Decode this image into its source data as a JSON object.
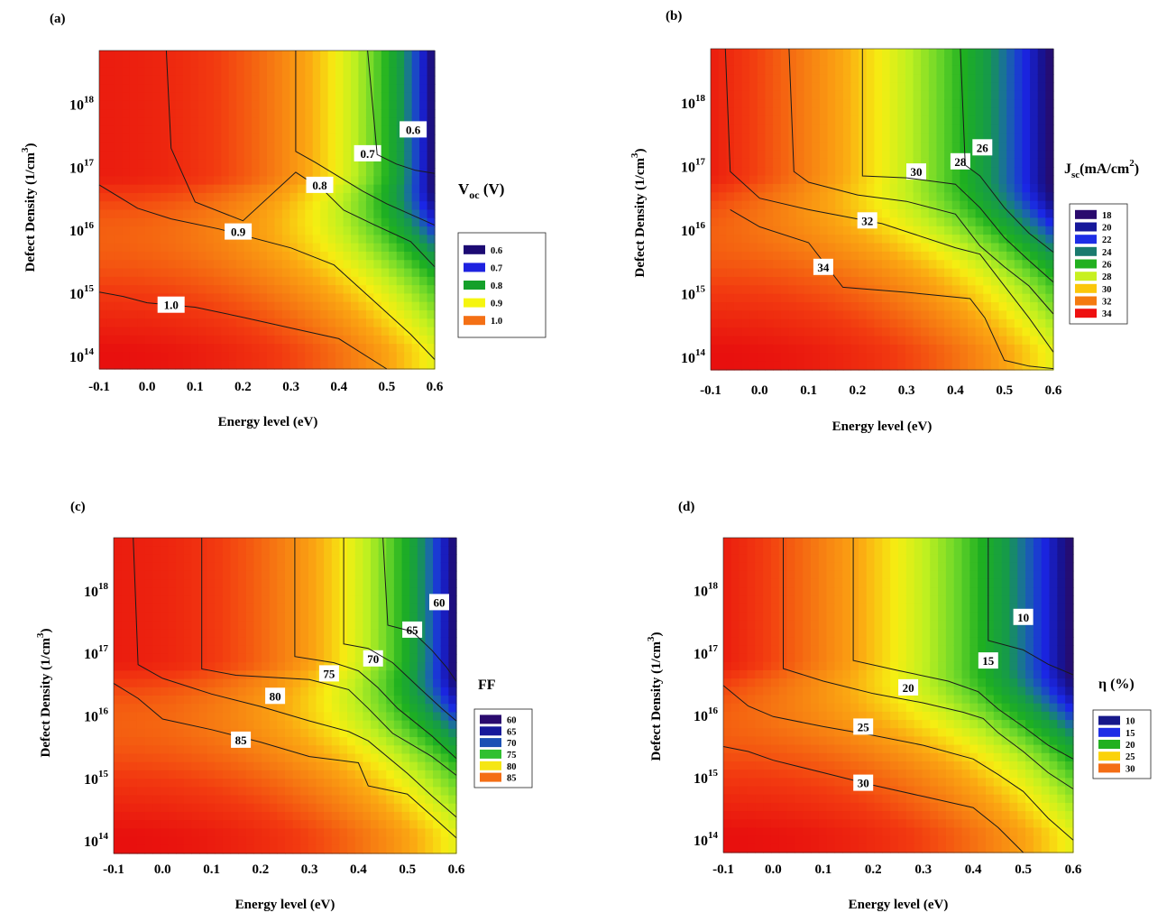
{
  "chart_data": [
    {
      "type": "heatmap",
      "panel": "(a)",
      "xlabel": "Energy level (eV)",
      "ylabel": "Defect Density (1/cm3)",
      "ylabel_base": "Defect Density (1/cm",
      "ylabel_sup": "3",
      "ylabel_close": ")",
      "colorbar_title": "V",
      "colorbar_title_sub": "oc",
      "colorbar_title_rest": " (V)",
      "xlim": [
        -0.1,
        0.6
      ],
      "ylim_log10": [
        13.8,
        18.85
      ],
      "x_ticks": [
        "-0.1",
        "0.0",
        "0.1",
        "0.2",
        "0.3",
        "0.4",
        "0.5",
        "0.6"
      ],
      "x_tick_values": [
        -0.1,
        0.0,
        0.1,
        0.2,
        0.3,
        0.4,
        0.5,
        0.6
      ],
      "y_tick_exponents": [
        "14",
        "15",
        "16",
        "17",
        "18"
      ],
      "y_tick_base": "10",
      "legend": [
        {
          "label": "0.6",
          "color": "#1c0a73"
        },
        {
          "label": "0.7",
          "color": "#1e22e0"
        },
        {
          "label": "0.8",
          "color": "#14a02a"
        },
        {
          "label": "0.9",
          "color": "#f5f510"
        },
        {
          "label": "1.0",
          "color": "#f47015"
        }
      ],
      "contours": [
        {
          "label": "1.0",
          "x": [
            -0.1,
            -0.05,
            0.0,
            0.1,
            0.2,
            0.3,
            0.4,
            0.5
          ],
          "y": [
            15.02,
            14.95,
            14.85,
            14.78,
            14.62,
            14.45,
            14.28,
            13.8
          ],
          "label_at": [
            0.05,
            14.82
          ]
        },
        {
          "label": "0.9",
          "x": [
            -0.1,
            -0.02,
            0.05,
            0.15,
            0.3,
            0.39,
            0.47,
            0.55,
            0.6
          ],
          "y": [
            16.72,
            16.35,
            16.18,
            16.02,
            15.72,
            15.45,
            14.9,
            14.35,
            13.95
          ],
          "label_at": [
            0.19,
            15.98
          ]
        },
        {
          "label": "0.8",
          "x": [
            0.04,
            0.05,
            0.1,
            0.2,
            0.31,
            0.37,
            0.41,
            0.47,
            0.55,
            0.6
          ],
          "y": [
            18.85,
            17.3,
            16.45,
            16.15,
            16.92,
            16.62,
            16.32,
            16.1,
            15.82,
            15.42
          ],
          "label_at": [
            0.36,
            16.72
          ]
        },
        {
          "label": "0.7",
          "x": [
            0.31,
            0.31,
            0.35,
            0.4,
            0.45,
            0.5,
            0.55,
            0.6
          ],
          "y": [
            18.85,
            17.25,
            17.08,
            16.85,
            16.62,
            16.42,
            16.25,
            16.08
          ],
          "label_at": [
            0.46,
            17.22
          ]
        },
        {
          "label": "0.6",
          "x": [
            0.46,
            0.48,
            0.52,
            0.56,
            0.6
          ],
          "y": [
            18.85,
            17.2,
            17.05,
            16.95,
            16.9
          ],
          "label_at": [
            0.555,
            17.6
          ]
        }
      ]
    },
    {
      "type": "heatmap",
      "panel": "(b)",
      "xlabel": "Energy level (eV)",
      "ylabel": "Defect Density (1/cm3)",
      "ylabel_base": "Defect Density (1/cm",
      "ylabel_sup": "3",
      "ylabel_close": ")",
      "colorbar_title": "J",
      "colorbar_title_sub": "sc",
      "colorbar_title_rest": "(mA/cm",
      "colorbar_title_sup": "2",
      "colorbar_title_close": ")",
      "xlim": [
        -0.1,
        0.6
      ],
      "ylim_log10": [
        13.8,
        18.85
      ],
      "x_ticks": [
        "-0.1",
        "0.0",
        "0.1",
        "0.2",
        "0.3",
        "0.4",
        "0.5",
        "0.6"
      ],
      "x_tick_values": [
        -0.1,
        0.0,
        0.1,
        0.2,
        0.3,
        0.4,
        0.5,
        0.6
      ],
      "y_tick_exponents": [
        "14",
        "15",
        "16",
        "17",
        "18"
      ],
      "y_tick_base": "10",
      "legend": [
        {
          "label": "18",
          "color": "#2a0a6e"
        },
        {
          "label": "20",
          "color": "#16189a"
        },
        {
          "label": "22",
          "color": "#1e2ee6"
        },
        {
          "label": "24",
          "color": "#1a7a6e"
        },
        {
          "label": "26",
          "color": "#22b020"
        },
        {
          "label": "28",
          "color": "#c8f020"
        },
        {
          "label": "30",
          "color": "#fbc70a"
        },
        {
          "label": "32",
          "color": "#f47a10"
        },
        {
          "label": "34",
          "color": "#ee1010"
        }
      ],
      "contours": [
        {
          "label": "34",
          "x": [
            -0.06,
            0.0,
            0.1,
            0.17,
            0.3,
            0.43,
            0.46,
            0.5,
            0.55,
            0.6
          ],
          "y": [
            16.32,
            16.05,
            15.8,
            15.1,
            15.02,
            14.92,
            14.62,
            13.95,
            13.86,
            13.82
          ],
          "label_at": [
            0.13,
            15.42
          ]
        },
        {
          "label": "32",
          "x": [
            -0.07,
            -0.06,
            0.0,
            0.1,
            0.25,
            0.4,
            0.45,
            0.5,
            0.55,
            0.6
          ],
          "y": [
            18.85,
            16.92,
            16.5,
            16.32,
            16.1,
            15.72,
            15.62,
            15.12,
            14.62,
            14.08
          ],
          "label_at": [
            0.22,
            16.15
          ]
        },
        {
          "label": "30",
          "x": [
            0.06,
            0.07,
            0.1,
            0.2,
            0.3,
            0.4,
            0.45,
            0.5,
            0.55,
            0.6
          ],
          "y": [
            18.85,
            16.92,
            16.75,
            16.55,
            16.45,
            16.25,
            15.75,
            15.42,
            15.12,
            14.68
          ],
          "label_at": [
            0.32,
            16.92
          ]
        },
        {
          "label": "28",
          "x": [
            0.21,
            0.21,
            0.3,
            0.4,
            0.45,
            0.5,
            0.55,
            0.6
          ],
          "y": [
            18.85,
            16.85,
            16.82,
            16.72,
            16.35,
            15.88,
            15.52,
            15.18
          ],
          "label_at": [
            0.41,
            17.08
          ]
        },
        {
          "label": "26",
          "x": [
            0.41,
            0.42,
            0.45,
            0.5,
            0.55,
            0.6
          ],
          "y": [
            18.85,
            17.02,
            16.85,
            16.35,
            15.95,
            15.65
          ],
          "label_at": [
            0.455,
            17.3
          ]
        }
      ]
    },
    {
      "type": "heatmap",
      "panel": "(c)",
      "xlabel": "Energy level (eV)",
      "ylabel": "Defect Density (1/cm3)",
      "ylabel_base": "Defect Density (1/cm",
      "ylabel_sup": "3",
      "ylabel_close": ")",
      "colorbar_title": "FF",
      "xlim": [
        -0.1,
        0.6
      ],
      "ylim_log10": [
        13.8,
        18.85
      ],
      "x_ticks": [
        "-0.1",
        "0.0",
        "0.1",
        "0.2",
        "0.3",
        "0.4",
        "0.5",
        "0.6"
      ],
      "x_tick_values": [
        -0.1,
        0.0,
        0.1,
        0.2,
        0.3,
        0.4,
        0.5,
        0.6
      ],
      "y_tick_exponents": [
        "14",
        "15",
        "16",
        "17",
        "18"
      ],
      "y_tick_base": "10",
      "legend": [
        {
          "label": "60",
          "color": "#2a0a6e"
        },
        {
          "label": "65",
          "color": "#16189a"
        },
        {
          "label": "70",
          "color": "#1a50b4"
        },
        {
          "label": "75",
          "color": "#30c030"
        },
        {
          "label": "80",
          "color": "#f5e614"
        },
        {
          "label": "85",
          "color": "#f46e15"
        }
      ],
      "contours": [
        {
          "label": "85",
          "x": [
            -0.1,
            -0.05,
            0.0,
            0.1,
            0.2,
            0.3,
            0.4,
            0.42,
            0.5,
            0.55,
            0.6
          ],
          "y": [
            16.52,
            16.28,
            15.95,
            15.78,
            15.58,
            15.35,
            15.25,
            14.88,
            14.75,
            14.4,
            14.05
          ],
          "label_at": [
            0.16,
            15.62
          ]
        },
        {
          "label": "80",
          "x": [
            -0.06,
            -0.05,
            0.0,
            0.1,
            0.2,
            0.3,
            0.38,
            0.42,
            0.5,
            0.55,
            0.6
          ],
          "y": [
            18.85,
            16.82,
            16.6,
            16.35,
            16.15,
            15.92,
            15.75,
            15.6,
            15.08,
            14.72,
            14.38
          ],
          "label_at": [
            0.23,
            16.32
          ]
        },
        {
          "label": "75",
          "x": [
            0.08,
            0.08,
            0.15,
            0.3,
            0.38,
            0.42,
            0.47,
            0.55,
            0.6
          ],
          "y": [
            18.85,
            16.75,
            16.65,
            16.58,
            16.42,
            16.12,
            15.72,
            15.35,
            15.05
          ],
          "label_at": [
            0.34,
            16.68
          ]
        },
        {
          "label": "70",
          "x": [
            0.27,
            0.27,
            0.35,
            0.4,
            0.44,
            0.48,
            0.55,
            0.6
          ],
          "y": [
            18.85,
            16.95,
            16.85,
            16.72,
            16.45,
            16.12,
            15.68,
            15.32
          ],
          "label_at": [
            0.43,
            16.92
          ]
        },
        {
          "label": "65",
          "x": [
            0.37,
            0.37,
            0.42,
            0.47,
            0.52,
            0.57,
            0.6
          ],
          "y": [
            18.85,
            17.15,
            17.08,
            16.85,
            16.48,
            16.12,
            15.92
          ],
          "label_at": [
            0.51,
            17.38
          ]
        },
        {
          "label": "60",
          "x": [
            0.45,
            0.46,
            0.51,
            0.55,
            0.58,
            0.6
          ],
          "y": [
            18.85,
            17.45,
            17.35,
            17.05,
            16.78,
            16.55
          ],
          "label_at": [
            0.565,
            17.82
          ]
        }
      ]
    },
    {
      "type": "heatmap",
      "panel": "(d)",
      "xlabel": "Energy level (eV)",
      "ylabel": "Defect Density (1/cm3)",
      "ylabel_base": "Defect Density (1/cm",
      "ylabel_sup": "3",
      "ylabel_close": ")",
      "colorbar_title": "η (%)",
      "xlim": [
        -0.1,
        0.6
      ],
      "ylim_log10": [
        13.8,
        18.85
      ],
      "x_ticks": [
        "-0.1",
        "0.0",
        "0.1",
        "0.2",
        "0.3",
        "0.4",
        "0.5",
        "0.6"
      ],
      "x_tick_values": [
        -0.1,
        0.0,
        0.1,
        0.2,
        0.3,
        0.4,
        0.5,
        0.6
      ],
      "y_tick_exponents": [
        "14",
        "15",
        "16",
        "17",
        "18"
      ],
      "y_tick_base": "10",
      "legend": [
        {
          "label": "10",
          "color": "#16188a"
        },
        {
          "label": "15",
          "color": "#1e2ee6"
        },
        {
          "label": "20",
          "color": "#22b020"
        },
        {
          "label": "25",
          "color": "#fbd20a"
        },
        {
          "label": "30",
          "color": "#f46e15"
        }
      ],
      "contours": [
        {
          "label": "30",
          "x": [
            -0.1,
            -0.05,
            0.0,
            0.1,
            0.2,
            0.3,
            0.4,
            0.45,
            0.5
          ],
          "y": [
            15.5,
            15.42,
            15.28,
            15.08,
            14.88,
            14.7,
            14.52,
            14.2,
            13.8
          ],
          "label_at": [
            0.18,
            14.92
          ]
        },
        {
          "label": "25",
          "x": [
            -0.1,
            -0.05,
            0.0,
            0.1,
            0.2,
            0.3,
            0.4,
            0.45,
            0.5,
            0.55,
            0.6
          ],
          "y": [
            16.48,
            16.15,
            15.98,
            15.82,
            15.68,
            15.52,
            15.3,
            15.05,
            14.78,
            14.35,
            14.0
          ],
          "label_at": [
            0.18,
            15.82
          ]
        },
        {
          "label": "20",
          "x": [
            0.02,
            0.02,
            0.1,
            0.2,
            0.3,
            0.38,
            0.42,
            0.45,
            0.5,
            0.55,
            0.6
          ],
          "y": [
            18.85,
            16.75,
            16.55,
            16.35,
            16.2,
            16.05,
            15.95,
            15.72,
            15.42,
            15.08,
            14.82
          ],
          "label_at": [
            0.27,
            16.45
          ]
        },
        {
          "label": "15",
          "x": [
            0.16,
            0.16,
            0.25,
            0.35,
            0.41,
            0.45,
            0.5,
            0.55,
            0.6
          ],
          "y": [
            18.85,
            16.88,
            16.72,
            16.55,
            16.38,
            16.1,
            15.82,
            15.52,
            15.3
          ],
          "label_at": [
            0.43,
            16.88
          ]
        },
        {
          "label": "10",
          "x": [
            0.43,
            0.43,
            0.5,
            0.55,
            0.6
          ],
          "y": [
            18.85,
            17.2,
            17.05,
            16.82,
            16.65
          ],
          "label_at": [
            0.5,
            17.58
          ]
        }
      ]
    }
  ]
}
